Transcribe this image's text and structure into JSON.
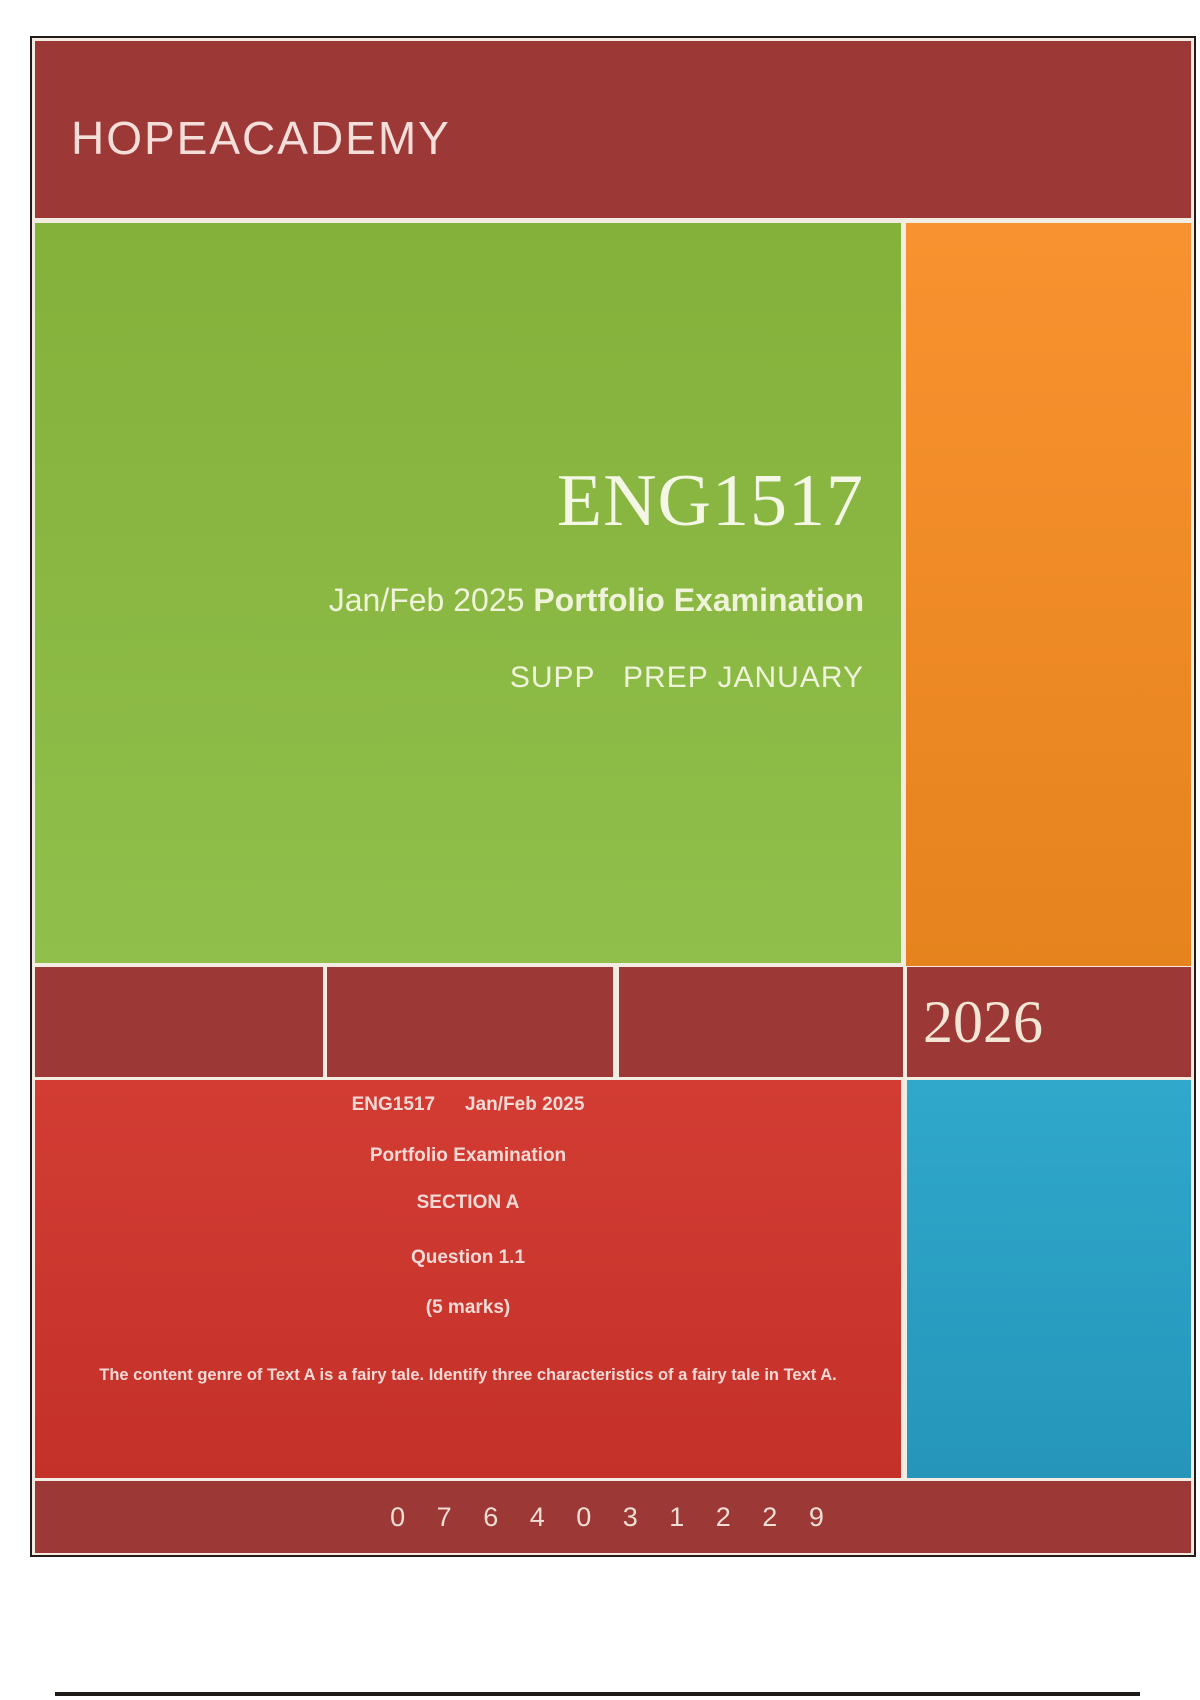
{
  "header": {
    "brand": "HOPEACADEMY"
  },
  "hero": {
    "course_code": "ENG1517",
    "subtitle_regular": "Jan/Feb 2025 ",
    "subtitle_bold": "Portfolio Examination",
    "supp_line": "SUPP   PREP JANUARY"
  },
  "year_band": {
    "year": "2026"
  },
  "details": {
    "line1_left": "ENG1517",
    "line1_right": "Jan/Feb 2025",
    "line2": "Portfolio Examination",
    "line3": "SECTION A",
    "line4": "Question 1.1",
    "line5": "(5 marks)",
    "question": "The content genre of Text A is a fairy tale. Identify three characteristics of a fairy tale in Text A."
  },
  "footer": {
    "phone": "0 7 6 4 0 3 1 2 2 9"
  },
  "colors": {
    "maroon": "#9c3835",
    "green-a": "#83b13a",
    "green-b": "#90bf4b",
    "orange-a": "#f89230",
    "orange-b": "#e6831e",
    "red-a": "#d23c33",
    "red-b": "#c43129",
    "blue-a": "#2fa8cb",
    "blue-b": "#2596ba",
    "gutter": "#f3ece3",
    "frame": "#241a18",
    "rule": "#1d1a18"
  }
}
